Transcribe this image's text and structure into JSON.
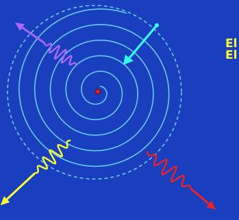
{
  "labels": [
    "El",
    "El"
  ],
  "colors": {
    "background": "#1a3fbe",
    "orbit": "#66ccff",
    "spiral": "#66ccff",
    "center_dot": "#e0201c",
    "infall_arrow": "#33ffff",
    "wave_purple": "#aa66ff",
    "wave_yellow": "#ffff33",
    "wave_red": "#ee2222",
    "label": "#ffff33"
  }
}
